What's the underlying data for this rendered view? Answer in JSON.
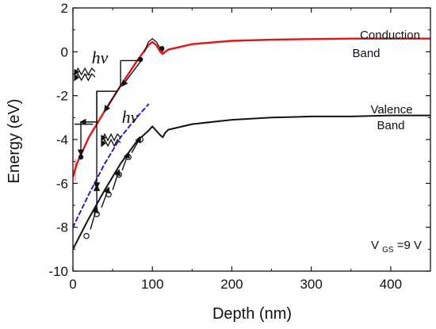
{
  "chart_data": {
    "type": "line",
    "title": "",
    "xlabel": "Depth (nm)",
    "ylabel": "Energy (eV)",
    "xlim": [
      0,
      450
    ],
    "ylim": [
      -10,
      2
    ],
    "xticks": [
      0,
      100,
      200,
      300,
      400
    ],
    "yticks": [
      -10,
      -8,
      -6,
      -4,
      -2,
      0,
      2
    ],
    "grid": false,
    "colors": {
      "conduction": "#e01515",
      "conduction_overlay": "#111111",
      "valence": "#111111",
      "dashed": "#2020cc",
      "axis": "#111111",
      "gray": "#888888"
    },
    "series": [
      {
        "name": "Conduction Band",
        "color": "#e01515",
        "x": [
          0,
          5,
          20,
          40,
          60,
          80,
          95,
          100,
          105,
          110,
          113,
          116,
          120,
          150,
          200,
          250,
          300,
          350,
          400,
          450
        ],
        "y": [
          -5.7,
          -5.1,
          -3.9,
          -2.7,
          -1.55,
          -0.45,
          0.3,
          0.45,
          0.3,
          0.0,
          -0.1,
          0.0,
          0.1,
          0.35,
          0.5,
          0.55,
          0.58,
          0.6,
          0.6,
          0.6
        ]
      },
      {
        "name": "Valence Band",
        "color": "#111111",
        "x": [
          0,
          20,
          40,
          60,
          80,
          95,
          100,
          110,
          113,
          116,
          120,
          150,
          200,
          250,
          300,
          350,
          400,
          450
        ],
        "y": [
          -9.0,
          -7.6,
          -6.3,
          -5.1,
          -4.1,
          -3.6,
          -3.4,
          -3.8,
          -3.9,
          -3.7,
          -3.55,
          -3.3,
          -3.1,
          -3.0,
          -2.95,
          -2.95,
          -2.9,
          -2.9
        ]
      },
      {
        "name": "",
        "color": "#2020cc",
        "style": "dashed",
        "x": [
          0,
          20,
          40,
          60,
          80,
          95
        ],
        "y": [
          -8.0,
          -6.5,
          -5.1,
          -3.9,
          -3.0,
          -2.4
        ]
      },
      {
        "name": "",
        "color": "#111111",
        "x": [
          90,
          95,
          100,
          105,
          110,
          113
        ],
        "y": [
          0.0,
          0.45,
          0.6,
          0.45,
          0.15,
          0.0
        ]
      }
    ],
    "annotations": {
      "conduction_label_1": "Conduction",
      "conduction_label_2": "Band",
      "valence_label_1": "Valence",
      "valence_label_2": "Band",
      "photon_upper": "hν",
      "photon_lower": "hν",
      "vgs_label_v": "V",
      "vgs_label_sub": "GS",
      "vgs_label_rest": "=9 V"
    },
    "electrons": [
      {
        "x": 10,
        "y": -4.8
      },
      {
        "x": 85,
        "y": -0.35
      },
      {
        "x": 112,
        "y": 0.15
      }
    ],
    "holes": [
      {
        "x": 17,
        "y": -8.4
      },
      {
        "x": 30,
        "y": -7.4
      },
      {
        "x": 45,
        "y": -6.5
      },
      {
        "x": 58,
        "y": -5.6
      },
      {
        "x": 70,
        "y": -4.8
      },
      {
        "x": 85,
        "y": -4.0
      }
    ]
  }
}
